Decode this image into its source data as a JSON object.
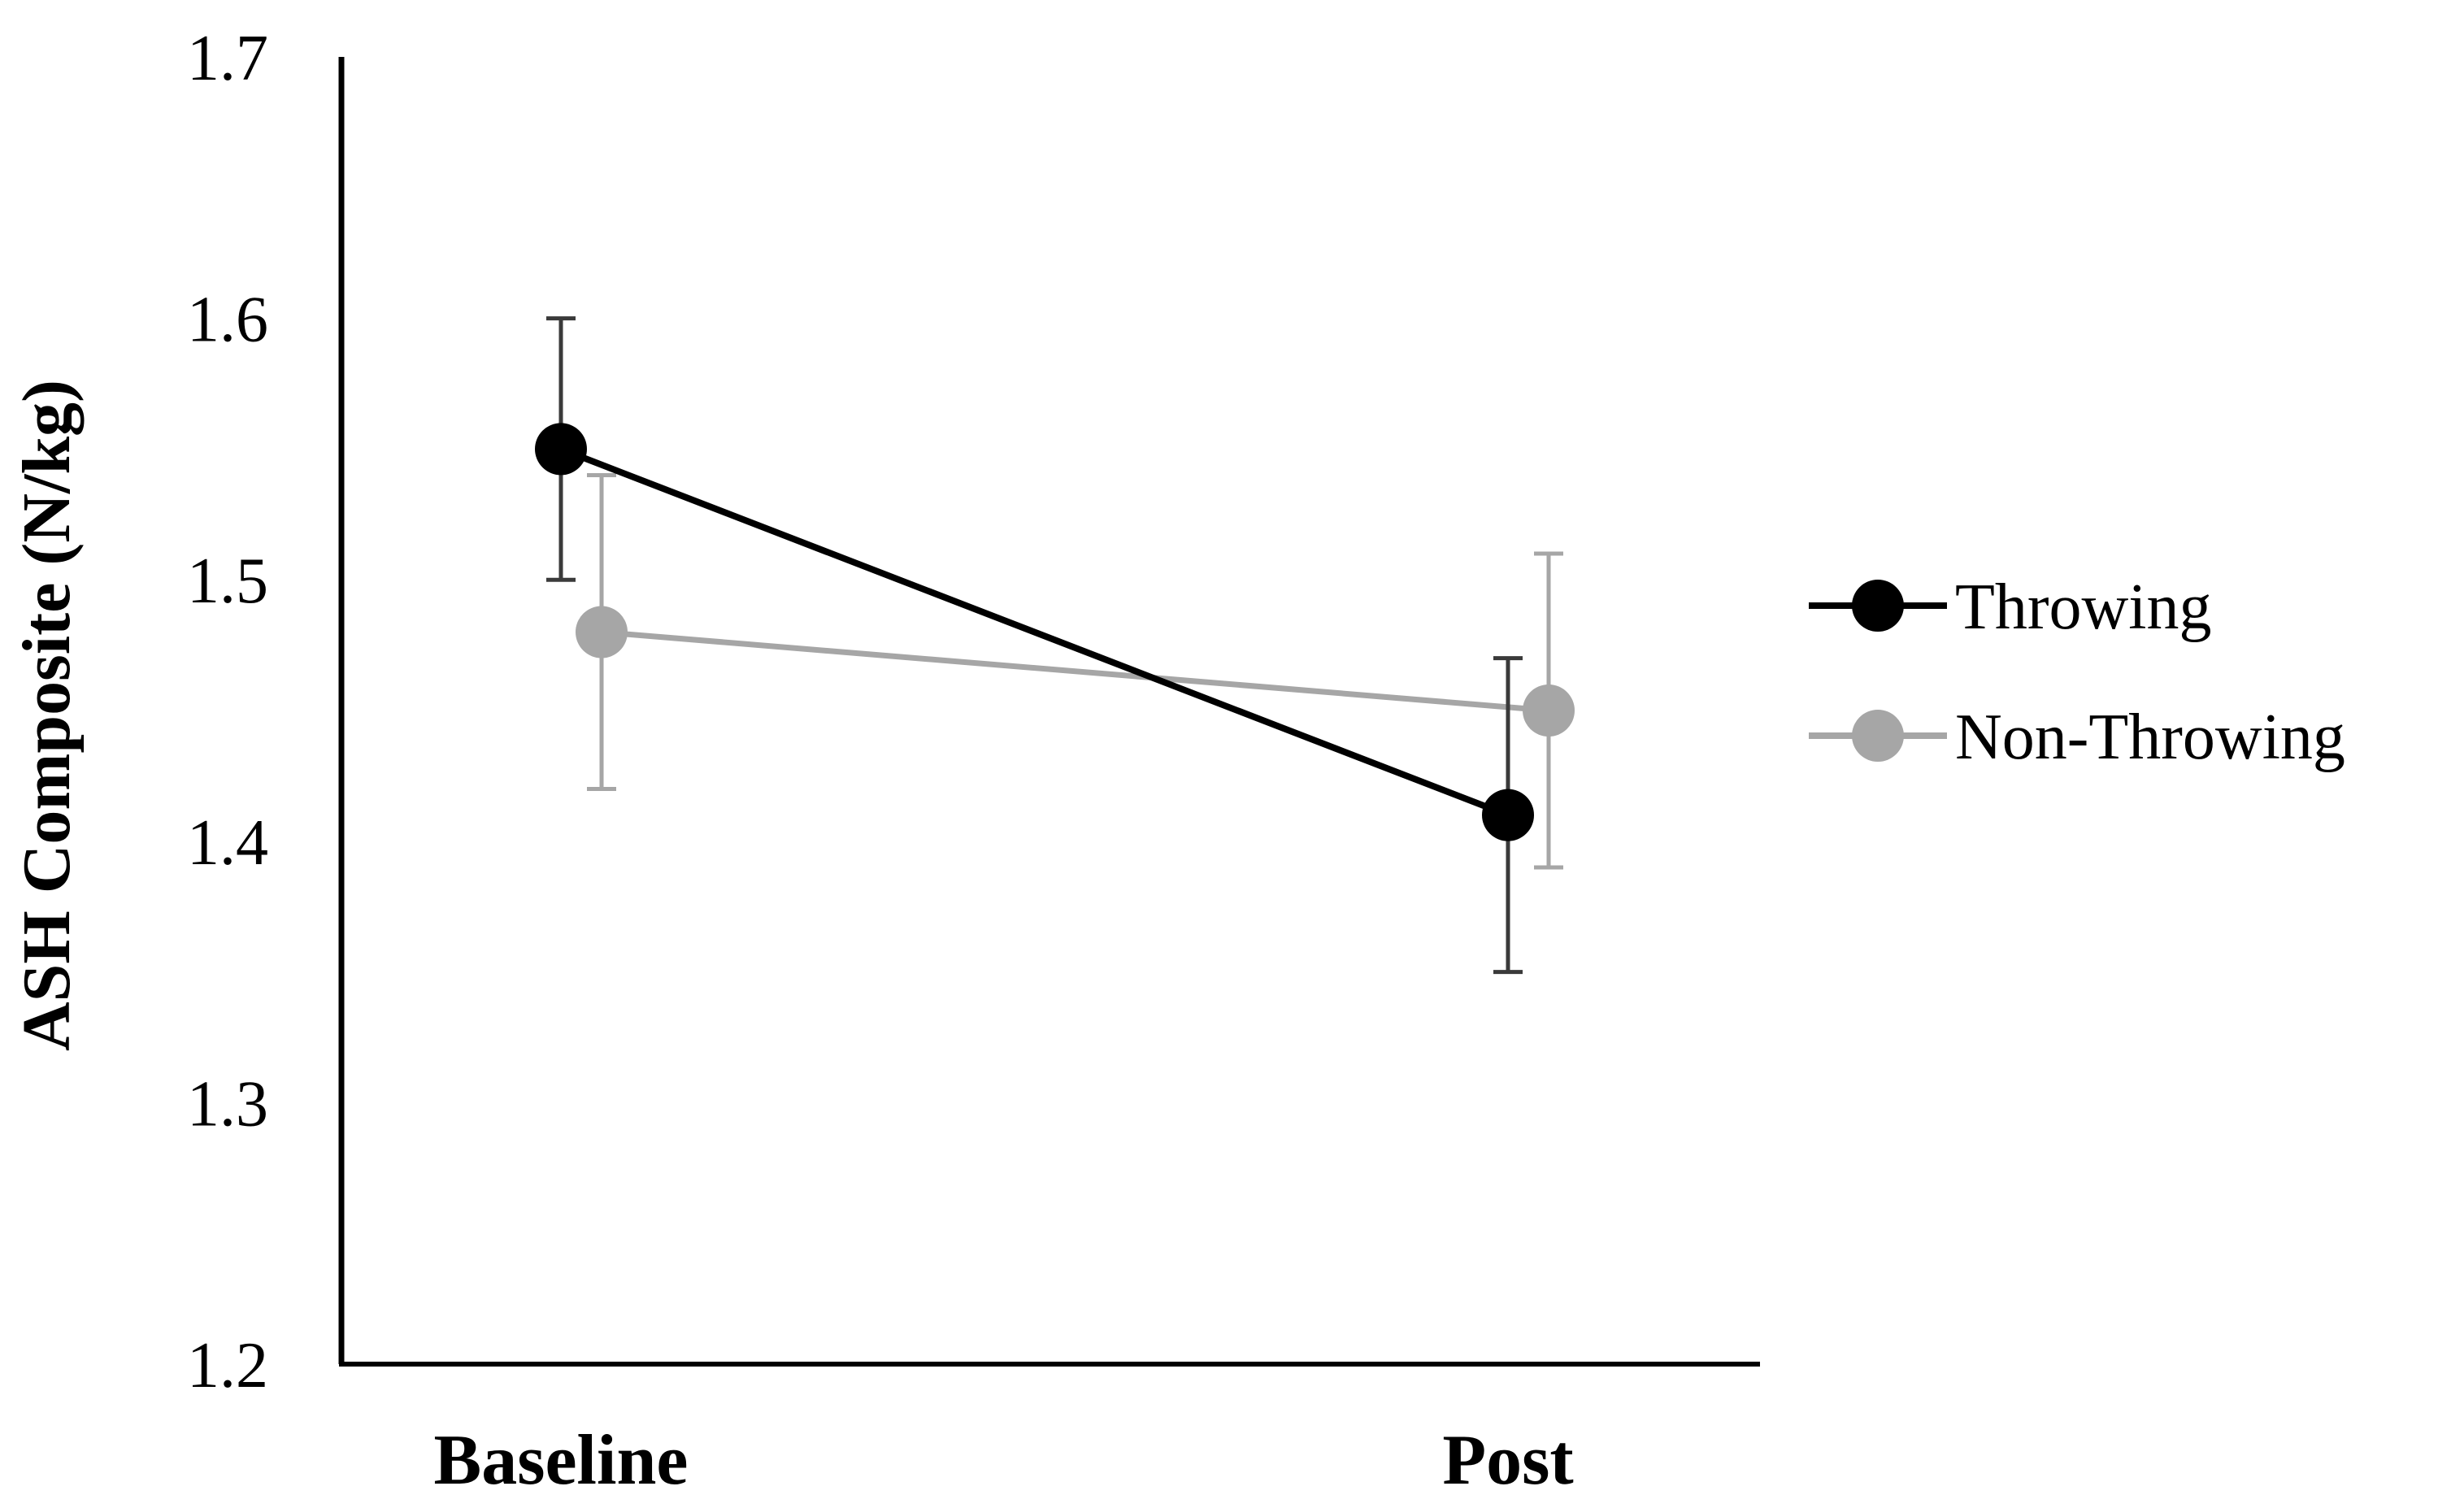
{
  "chart_data": {
    "type": "line",
    "title": "",
    "xlabel": "",
    "ylabel": "ASH Composite (N/kg)",
    "categories": [
      "Baseline",
      "Post"
    ],
    "ylim": [
      1.2,
      1.7
    ],
    "yticks": [
      1.2,
      1.3,
      1.4,
      1.5,
      1.6,
      1.7
    ],
    "ytick_labels": [
      "1.2",
      "1.3",
      "1.4",
      "1.5",
      "1.6",
      "1.7"
    ],
    "grid": false,
    "legend_position": "right",
    "series": [
      {
        "name": "Throwing",
        "color": "#000000",
        "values": [
          1.55,
          1.41
        ],
        "error_low": [
          1.5,
          1.35
        ],
        "error_high": [
          1.6,
          1.47
        ]
      },
      {
        "name": "Non-Throwing",
        "color": "#a6a6a6",
        "values": [
          1.48,
          1.45
        ],
        "error_low": [
          1.42,
          1.39
        ],
        "error_high": [
          1.54,
          1.51
        ]
      }
    ]
  }
}
